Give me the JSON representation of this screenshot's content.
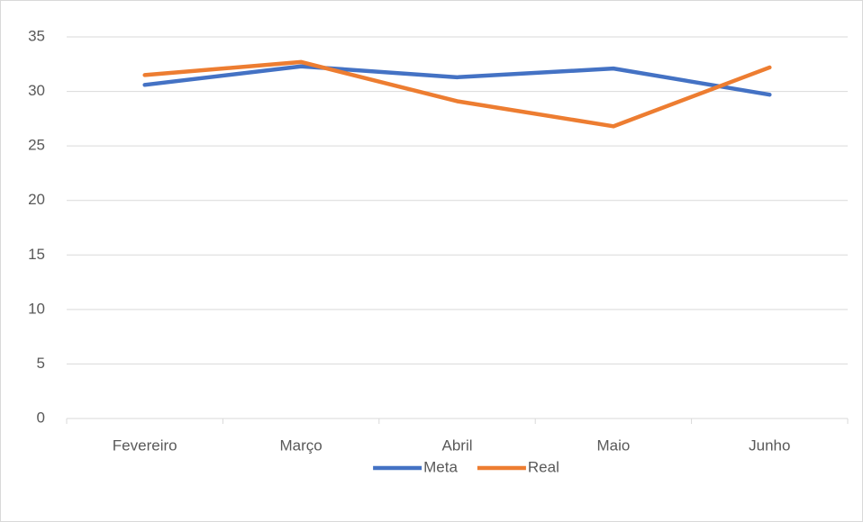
{
  "chart_data": {
    "type": "line",
    "categories": [
      "Fevereiro",
      "Março",
      "Abril",
      "Maio",
      "Junho"
    ],
    "series": [
      {
        "name": "Meta",
        "color": "#4472c4",
        "values": [
          30.6,
          32.3,
          31.3,
          32.1,
          29.7
        ]
      },
      {
        "name": "Real",
        "color": "#ed7d31",
        "values": [
          31.5,
          32.7,
          29.1,
          26.8,
          32.2
        ]
      }
    ],
    "ylim": [
      0,
      35
    ],
    "yticks": [
      0,
      5,
      10,
      15,
      20,
      25,
      30,
      35
    ],
    "grid": true,
    "legend": "bottom"
  }
}
